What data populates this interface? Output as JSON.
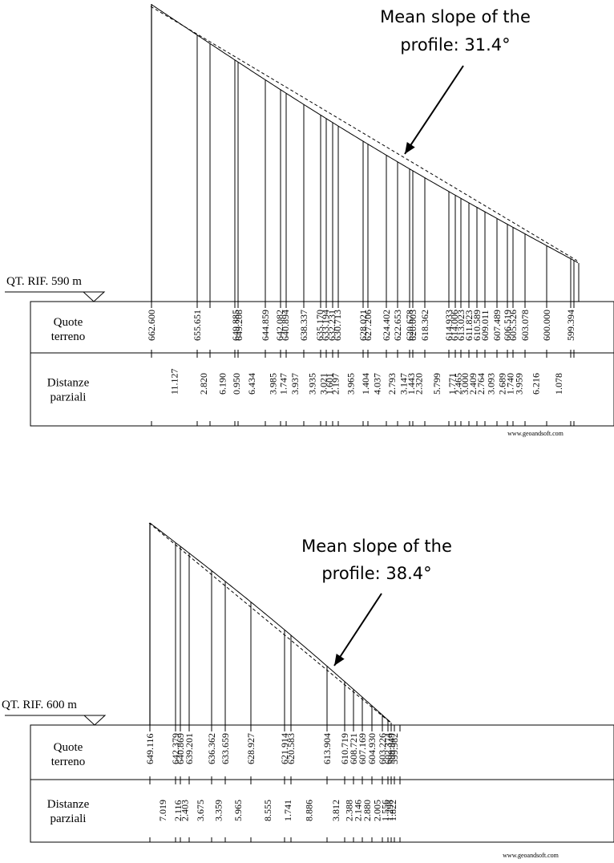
{
  "profiles": [
    {
      "annotation": [
        "Mean slope of the",
        "profile: 31.4°"
      ],
      "reference_label": "QT. RIF. 590 m",
      "row_labels": {
        "elevations": [
          "Quote",
          "terreno"
        ],
        "distances": [
          "Distanze",
          "parziali"
        ]
      },
      "credit": "www.geoandsoft.com",
      "elevations": [
        "662.600",
        "655.651",
        "649.885",
        "649.208",
        "644.859",
        "642.082",
        "640.894",
        "638.337",
        "635.170",
        "633.194",
        "632.231",
        "630.713",
        "628.021",
        "627.206",
        "624.402",
        "622.653",
        "620.678",
        "620.003",
        "618.362",
        "614.933",
        "614.006",
        "613.023",
        "611.823",
        "610.589",
        "609.011",
        "607.489",
        "606.519",
        "605.526",
        "603.078",
        "600.000",
        "599.394"
      ],
      "distances": [
        "11.127",
        "2.820",
        "6.190",
        "0.950",
        "6.434",
        "3.985",
        "1.747",
        "3.937",
        "3.935",
        "3.021",
        "1.601",
        "2.197",
        "3.965",
        "1.404",
        "4.037",
        "2.793",
        "3.147",
        "1.443",
        "2.320",
        "5.799",
        "1.771",
        "2.465",
        "3.000",
        "2.409",
        "2.764",
        "3.093",
        "2.689",
        "1.740",
        "3.959",
        "6.216",
        "1.078"
      ]
    },
    {
      "annotation": [
        "Mean slope of the",
        "profile: 38.4°"
      ],
      "reference_label": "QT. RIF. 600 m",
      "row_labels": {
        "elevations": [
          "Quote",
          "terreno"
        ],
        "distances": [
          "Distanze",
          "parziali"
        ]
      },
      "credit": "www.geoandsoft.com",
      "elevations": [
        "649.116",
        "642.379",
        "640.869",
        "639.201",
        "636.362",
        "633.659",
        "628.927",
        "621.914",
        "620.583",
        "613.904",
        "610.719",
        "608.721",
        "607.169",
        "604.930",
        "603.226",
        "602.374",
        "599.949",
        "599.982"
      ],
      "distances": [
        "7.019",
        "2.116",
        "2.403",
        "3.675",
        "3.359",
        "5.965",
        "8.555",
        "1.741",
        "8.886",
        "3.812",
        "2.388",
        "2.146",
        "2.880",
        "2.005",
        "1.556",
        "1.298",
        "1.822"
      ]
    }
  ]
}
